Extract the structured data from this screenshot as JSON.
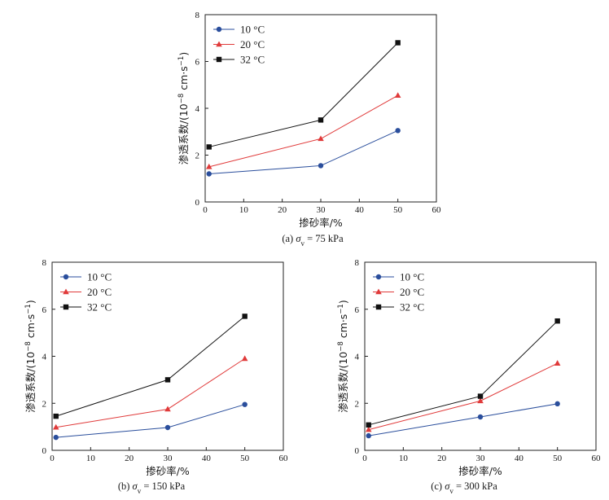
{
  "chart_data": [
    {
      "type": "line",
      "caption": "(a) σv = 75 kPa",
      "caption_prefix": "(a) ",
      "caption_sym": "σ",
      "caption_sub": "v",
      "caption_rest": " = 75 kPa",
      "xlabel": "掺砂率/%",
      "ylabel": "渗透系数/(10-8 cm·s-1)",
      "xlim": [
        0,
        60
      ],
      "ylim": [
        0,
        8
      ],
      "xticks": [
        "0",
        "10",
        "20",
        "30",
        "40",
        "50",
        "60"
      ],
      "yticks": [
        "0",
        "2",
        "4",
        "6",
        "8"
      ],
      "legend_position": "top-left",
      "x": [
        1,
        30,
        50
      ],
      "series": [
        {
          "name": "10 °C",
          "color": "#2a4e9c",
          "marker": "circle",
          "values": [
            1.2,
            1.55,
            3.05
          ]
        },
        {
          "name": "20 °C",
          "color": "#e03a3a",
          "marker": "triangle",
          "values": [
            1.5,
            2.7,
            4.55
          ]
        },
        {
          "name": "32 °C",
          "color": "#111111",
          "marker": "square",
          "values": [
            2.35,
            3.5,
            6.8
          ]
        }
      ]
    },
    {
      "type": "line",
      "caption": "(b) σv = 150 kPa",
      "caption_prefix": "(b) ",
      "caption_sym": "σ",
      "caption_sub": "v",
      "caption_rest": " = 150 kPa",
      "xlabel": "掺砂率/%",
      "ylabel": "渗透系数/(10-8 cm·s-1)",
      "xlim": [
        0,
        60
      ],
      "ylim": [
        0,
        8
      ],
      "xticks": [
        "0",
        "10",
        "20",
        "30",
        "40",
        "50",
        "60"
      ],
      "yticks": [
        "0",
        "2",
        "4",
        "6",
        "8"
      ],
      "legend_position": "top-left",
      "x": [
        1,
        30,
        50
      ],
      "series": [
        {
          "name": "10 °C",
          "color": "#2a4e9c",
          "marker": "circle",
          "values": [
            0.55,
            0.97,
            1.95
          ]
        },
        {
          "name": "20 °C",
          "color": "#e03a3a",
          "marker": "triangle",
          "values": [
            0.98,
            1.75,
            3.9
          ]
        },
        {
          "name": "32 °C",
          "color": "#111111",
          "marker": "square",
          "values": [
            1.45,
            3.0,
            5.7
          ]
        }
      ]
    },
    {
      "type": "line",
      "caption": "(c) σv = 300 kPa",
      "caption_prefix": "(c) ",
      "caption_sym": "σ",
      "caption_sub": "v",
      "caption_rest": " = 300 kPa",
      "xlabel": "掺砂率/%",
      "ylabel": "渗透系数/(10-8 cm·s-1)",
      "xlim": [
        0,
        60
      ],
      "ylim": [
        0,
        8
      ],
      "xticks": [
        "0",
        "10",
        "20",
        "30",
        "40",
        "50",
        "60"
      ],
      "yticks": [
        "0",
        "2",
        "4",
        "6",
        "8"
      ],
      "legend_position": "top-left",
      "x": [
        1,
        30,
        50
      ],
      "series": [
        {
          "name": "10 °C",
          "color": "#2a4e9c",
          "marker": "circle",
          "values": [
            0.62,
            1.42,
            1.98
          ]
        },
        {
          "name": "20 °C",
          "color": "#e03a3a",
          "marker": "triangle",
          "values": [
            0.88,
            2.1,
            3.7
          ]
        },
        {
          "name": "32 °C",
          "color": "#111111",
          "marker": "square",
          "values": [
            1.08,
            2.3,
            5.5
          ]
        }
      ]
    }
  ]
}
